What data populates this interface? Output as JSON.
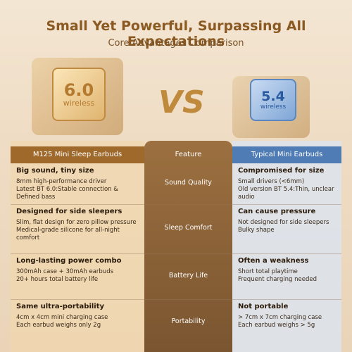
{
  "header": {
    "title": "Small Yet Powerful, Surpassing All Expectations",
    "subtitle": "Core Advantages Comparison"
  },
  "chips": {
    "left": {
      "version": "6.0",
      "label": "wireless"
    },
    "vs": "VS",
    "right": {
      "version": "5.4",
      "label": "wireless"
    }
  },
  "table": {
    "headers": [
      "M125 Mini Sleep Earbuds",
      "Feature",
      "Typical Mini Earbuds"
    ],
    "rows": [
      {
        "left": {
          "heading": "Big sound, tiny size",
          "lines": [
            "8mm high-performance driver",
            "Latest BT 6.0:Stable connection & Defined bass"
          ]
        },
        "feature": "Sound Quality",
        "right": {
          "heading": "Compromised for size",
          "lines": [
            "Small drivers (<6mm)",
            "Old version BT 5.4:Thin, unclear audio"
          ]
        }
      },
      {
        "left": {
          "heading": "Designed for side sleepers",
          "lines": [
            "Slim, flat design for zero pillow pressure",
            "Medical-grade silicone for all-night comfort"
          ]
        },
        "feature": "Sleep Comfort",
        "right": {
          "heading": "Can cause pressure",
          "lines": [
            "Not designed for side sleepers",
            "Bulky shape"
          ]
        }
      },
      {
        "left": {
          "heading": "Long-lasting power combo",
          "lines": [
            "300mAh case + 30mAh earbuds",
            "20+ hours total battery life"
          ]
        },
        "feature": "Battery Life",
        "right": {
          "heading": "Often a weakness",
          "lines": [
            "Short total playtime",
            "Frequent charging needed"
          ]
        }
      },
      {
        "left": {
          "heading": "Same ultra-portability",
          "lines": [
            "4cm x 4cm mini charging case",
            "Each earbud weighs only 2g"
          ]
        },
        "feature": "Portability",
        "right": {
          "heading": "Not portable",
          "lines": [
            "> 7cm x 7cm charging case",
            "Each earbud weighs > 5g"
          ]
        }
      }
    ]
  }
}
